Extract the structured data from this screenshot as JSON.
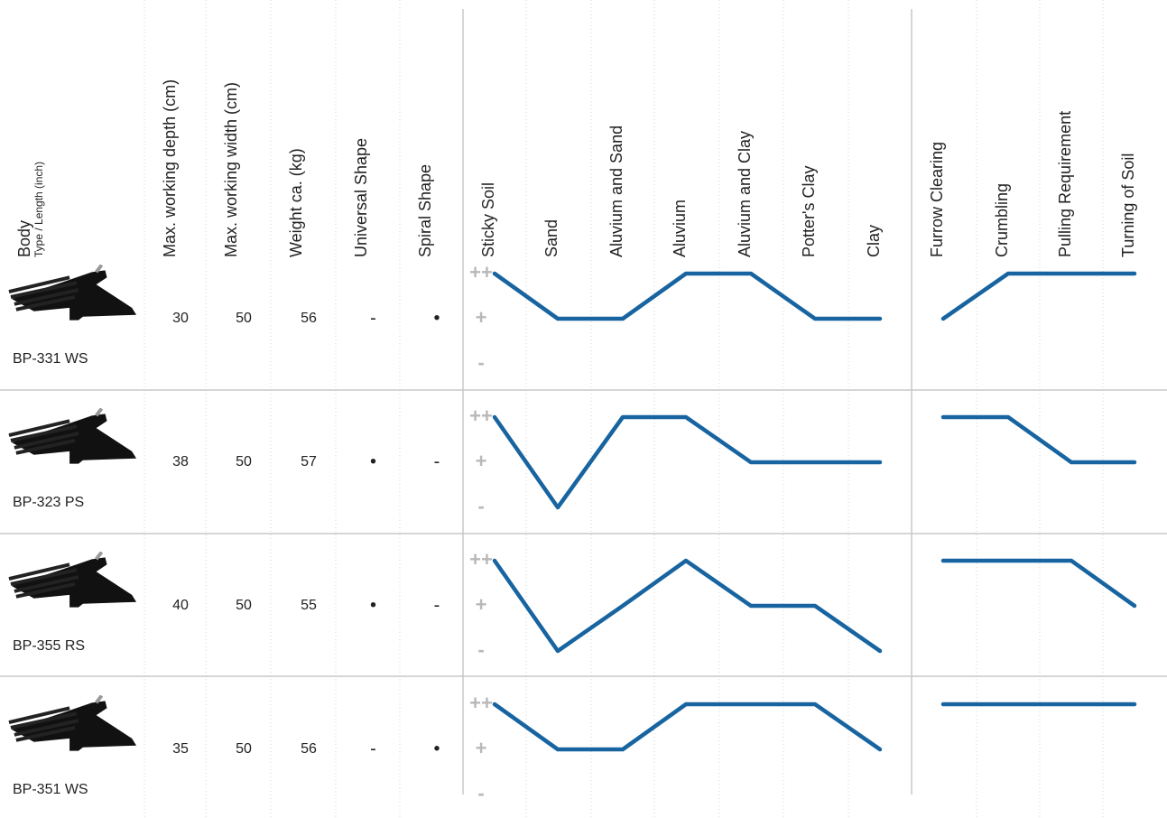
{
  "header": {
    "body": "Body",
    "body_sub": "Type / Length (inch)",
    "columns": [
      "Max. working depth (cm)",
      "Max. working width (cm)",
      "Weight ca. (kg)",
      "Universal Shape",
      "Spiral Shape",
      "Sticky Soil",
      "Sand",
      "Aluvium and Sand",
      "Aluvium",
      "Aluvium and Clay",
      "Potter's Clay",
      "Clay",
      "Furrow Clearing",
      "Crumbling",
      "Pulling Requirement",
      "Turning of Soil"
    ]
  },
  "levels": [
    {
      "value": 2,
      "label": "++"
    },
    {
      "value": 1,
      "label": "+"
    },
    {
      "value": 0,
      "label": "-"
    }
  ],
  "line_color": "#0b5c9b",
  "rows": [
    {
      "name": "BP-331 WS",
      "depth": 30,
      "width": 50,
      "weight": 56,
      "universal": "-",
      "spiral": "•",
      "soil": [
        2,
        1,
        1,
        2,
        2,
        1,
        1
      ],
      "properties": [
        1,
        2,
        2,
        2
      ]
    },
    {
      "name": "BP-323 PS",
      "depth": 38,
      "width": 50,
      "weight": 57,
      "universal": "•",
      "spiral": "-",
      "soil": [
        2,
        0,
        2,
        2,
        1,
        1,
        1
      ],
      "properties": [
        2,
        2,
        1,
        1
      ]
    },
    {
      "name": "BP-355 RS",
      "depth": 40,
      "width": 50,
      "weight": 55,
      "universal": "•",
      "spiral": "-",
      "soil": [
        2,
        0,
        1,
        2,
        1,
        1,
        0
      ],
      "properties": [
        2,
        2,
        2,
        1
      ]
    },
    {
      "name": "BP-351 WS",
      "depth": 35,
      "width": 50,
      "weight": 56,
      "universal": "-",
      "spiral": "•",
      "soil": [
        2,
        1,
        1,
        2,
        2,
        2,
        1
      ],
      "properties": [
        2,
        2,
        2,
        2
      ]
    }
  ]
}
